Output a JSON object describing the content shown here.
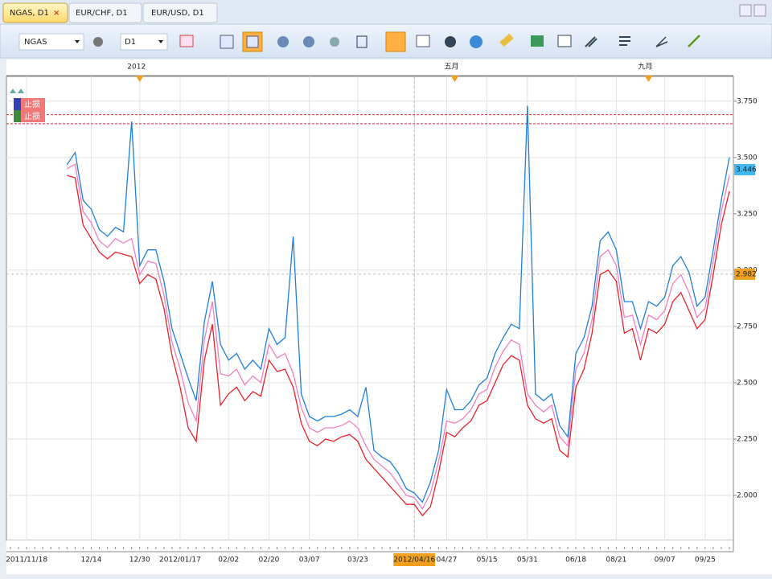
{
  "tabs": [
    "NGAS, D1",
    "EUR/CHF, D1",
    "EUR/USD, D1"
  ],
  "toolbar": {
    "symbol": "NGAS",
    "period": "D1"
  },
  "stop_labels": [
    "止损",
    "止损"
  ],
  "chart_data": {
    "type": "line",
    "categories": [
      null,
      null,
      "2011/11/18",
      null,
      null,
      null,
      null,
      null,
      null,
      null,
      "12/14",
      null,
      null,
      null,
      null,
      null,
      "12/30",
      null,
      null,
      null,
      null,
      "2012/01/17",
      null,
      null,
      null,
      null,
      null,
      "02/02",
      null,
      null,
      null,
      null,
      "02/20",
      null,
      null,
      null,
      null,
      "03/07",
      null,
      null,
      null,
      null,
      null,
      "03/23",
      null,
      null,
      null,
      null,
      null,
      null,
      "2012/04/16",
      null,
      null,
      null,
      "04/27",
      null,
      null,
      null,
      null,
      "05/15",
      null,
      null,
      null,
      null,
      "05/31",
      null,
      null,
      null,
      null,
      null,
      "06/18",
      null,
      null,
      null,
      null,
      "08/21",
      null,
      null,
      null,
      null,
      null,
      "09/07",
      null,
      null,
      null,
      null,
      "09/25",
      null,
      null,
      null
    ],
    "top_categories": [
      null,
      null,
      null,
      null,
      null,
      null,
      null,
      null,
      null,
      null,
      null,
      null,
      null,
      null,
      null,
      null,
      "2012",
      null,
      null,
      null,
      null,
      null,
      null,
      null,
      null,
      null,
      null,
      null,
      null,
      null,
      null,
      null,
      null,
      null,
      null,
      null,
      null,
      null,
      null,
      null,
      null,
      null,
      null,
      null,
      null,
      null,
      null,
      null,
      null,
      null,
      null,
      null,
      null,
      null,
      null,
      "五月",
      null,
      null,
      null,
      null,
      null,
      null,
      null,
      null,
      null,
      null,
      null,
      null,
      null,
      null,
      null,
      null,
      null,
      null,
      null,
      null,
      null,
      null,
      null,
      "九月",
      null,
      null,
      null,
      null,
      null,
      null,
      null,
      null,
      null,
      null
    ],
    "highlight_category": "2012/04/16",
    "series": [
      {
        "color": "#1f7fd8",
        "values": [
          null,
          null,
          null,
          null,
          null,
          null,
          null,
          3.468,
          3.522,
          3.31,
          3.27,
          3.18,
          3.15,
          3.19,
          3.17,
          3.66,
          3.02,
          3.09,
          3.09,
          2.95,
          2.74,
          2.63,
          2.52,
          2.42,
          2.77,
          2.95,
          2.67,
          2.6,
          2.63,
          2.56,
          2.6,
          2.56,
          2.74,
          2.67,
          2.7,
          3.15,
          2.45,
          2.35,
          2.33,
          2.35,
          2.35,
          2.36,
          2.38,
          2.35,
          2.48,
          2.2,
          2.17,
          2.15,
          2.1,
          2.03,
          2.01,
          1.97,
          2.06,
          2.2,
          2.47,
          2.38,
          2.38,
          2.42,
          2.49,
          2.52,
          2.63,
          2.7,
          2.76,
          2.74,
          3.73,
          2.45,
          2.42,
          2.45,
          2.31,
          2.26,
          2.63,
          2.7,
          2.84,
          3.13,
          3.17,
          3.09,
          2.86,
          2.86,
          2.74,
          2.86,
          2.84,
          2.88,
          3.02,
          3.06,
          2.99,
          2.84,
          2.88,
          3.09,
          3.31,
          3.5
        ]
      },
      {
        "color": "#f080c0",
        "values": [
          null,
          null,
          null,
          null,
          null,
          null,
          null,
          3.45,
          3.47,
          3.26,
          3.21,
          3.13,
          3.1,
          3.14,
          3.12,
          3.14,
          2.98,
          3.04,
          3.03,
          2.89,
          2.68,
          2.56,
          2.41,
          2.33,
          2.69,
          2.86,
          2.54,
          2.53,
          2.56,
          2.49,
          2.53,
          2.5,
          2.67,
          2.61,
          2.63,
          2.54,
          2.39,
          2.3,
          2.28,
          2.3,
          2.3,
          2.31,
          2.33,
          2.3,
          2.22,
          2.16,
          2.13,
          2.1,
          2.05,
          2.0,
          1.99,
          1.94,
          2.01,
          2.15,
          2.33,
          2.32,
          2.34,
          2.38,
          2.45,
          2.47,
          2.57,
          2.64,
          2.69,
          2.67,
          2.45,
          2.4,
          2.37,
          2.4,
          2.26,
          2.22,
          2.56,
          2.63,
          2.78,
          3.06,
          3.09,
          3.02,
          2.79,
          2.8,
          2.67,
          2.8,
          2.78,
          2.82,
          2.94,
          2.98,
          2.9,
          2.79,
          2.83,
          3.04,
          3.26,
          3.42
        ]
      },
      {
        "color": "#e8202a",
        "values": [
          null,
          null,
          null,
          null,
          null,
          null,
          null,
          3.42,
          3.41,
          3.2,
          3.14,
          3.08,
          3.05,
          3.08,
          3.07,
          3.06,
          2.94,
          2.98,
          2.96,
          2.83,
          2.62,
          2.48,
          2.3,
          2.24,
          2.6,
          2.76,
          2.4,
          2.45,
          2.48,
          2.42,
          2.46,
          2.44,
          2.6,
          2.55,
          2.56,
          2.48,
          2.32,
          2.24,
          2.22,
          2.25,
          2.24,
          2.26,
          2.27,
          2.24,
          2.16,
          2.12,
          2.08,
          2.04,
          2.0,
          1.96,
          1.96,
          1.91,
          1.95,
          2.1,
          2.28,
          2.26,
          2.3,
          2.33,
          2.4,
          2.42,
          2.5,
          2.58,
          2.62,
          2.6,
          2.4,
          2.34,
          2.32,
          2.34,
          2.2,
          2.17,
          2.48,
          2.56,
          2.72,
          2.98,
          3.0,
          2.95,
          2.72,
          2.74,
          2.6,
          2.74,
          2.72,
          2.76,
          2.86,
          2.9,
          2.82,
          2.74,
          2.78,
          2.98,
          3.2,
          3.35
        ]
      }
    ],
    "ylim": [
      1.8,
      3.86
    ],
    "yticks": [
      {
        "value": 2,
        "label": "2.000"
      },
      {
        "value": 2.25,
        "label": "2.250"
      },
      {
        "value": 2.5,
        "label": "2.500"
      },
      {
        "value": 2.75,
        "label": "2.750"
      },
      {
        "value": 3,
        "label": "3.000"
      },
      {
        "value": 3.25,
        "label": "3.250"
      },
      {
        "value": 3.5,
        "label": "3.500"
      },
      {
        "value": 3.75,
        "label": "3.750"
      }
    ],
    "stop_levels": [
      3.69,
      3.65
    ],
    "current_price": 3.446,
    "cursor_price": 2.982,
    "grid": true
  }
}
